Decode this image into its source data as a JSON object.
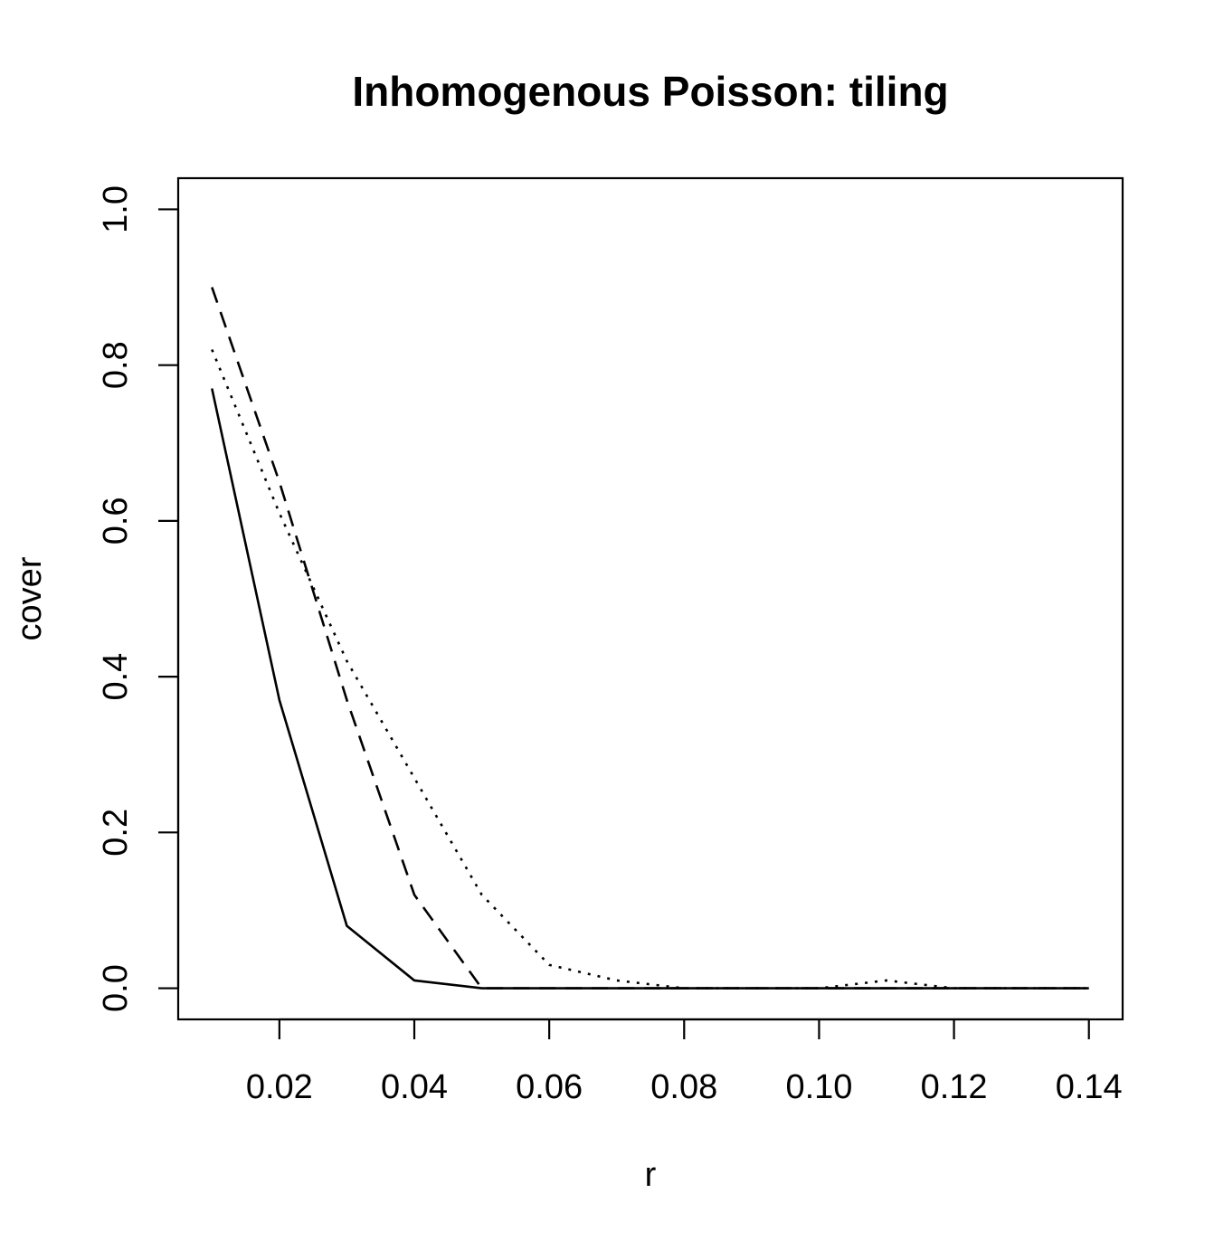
{
  "chart_data": {
    "type": "line",
    "title": "Inhomogenous Poisson: tiling",
    "xlabel": "r",
    "ylabel": "cover",
    "xlim": [
      0.005,
      0.145
    ],
    "ylim": [
      -0.04,
      1.04
    ],
    "xticks": [
      0.02,
      0.04,
      0.06,
      0.08,
      0.1,
      0.12,
      0.14
    ],
    "xtick_labels": [
      "0.02",
      "0.04",
      "0.06",
      "0.08",
      "0.10",
      "0.12",
      "0.14"
    ],
    "yticks": [
      0.0,
      0.2,
      0.4,
      0.6,
      0.8,
      1.0
    ],
    "ytick_labels": [
      "0.0",
      "0.2",
      "0.4",
      "0.6",
      "0.8",
      "1.0"
    ],
    "grid": false,
    "legend": false,
    "x": [
      0.01,
      0.02,
      0.03,
      0.04,
      0.05,
      0.06,
      0.07,
      0.08,
      0.09,
      0.1,
      0.11,
      0.12,
      0.13,
      0.14
    ],
    "series": [
      {
        "style": "solid",
        "values": [
          0.77,
          0.37,
          0.08,
          0.01,
          0.0,
          0.0,
          0.0,
          0.0,
          0.0,
          0.0,
          0.0,
          0.0,
          0.0,
          0.0
        ]
      },
      {
        "style": "dashed",
        "values": [
          0.9,
          0.65,
          0.37,
          0.12,
          0.0,
          0.0,
          0.0,
          0.0,
          0.0,
          0.0,
          0.0,
          0.0,
          0.0,
          0.0
        ]
      },
      {
        "style": "dotted",
        "values": [
          0.82,
          0.61,
          0.42,
          0.27,
          0.12,
          0.03,
          0.01,
          0.0,
          0.0,
          0.0,
          0.01,
          0.0,
          0.0,
          0.0
        ]
      }
    ]
  }
}
